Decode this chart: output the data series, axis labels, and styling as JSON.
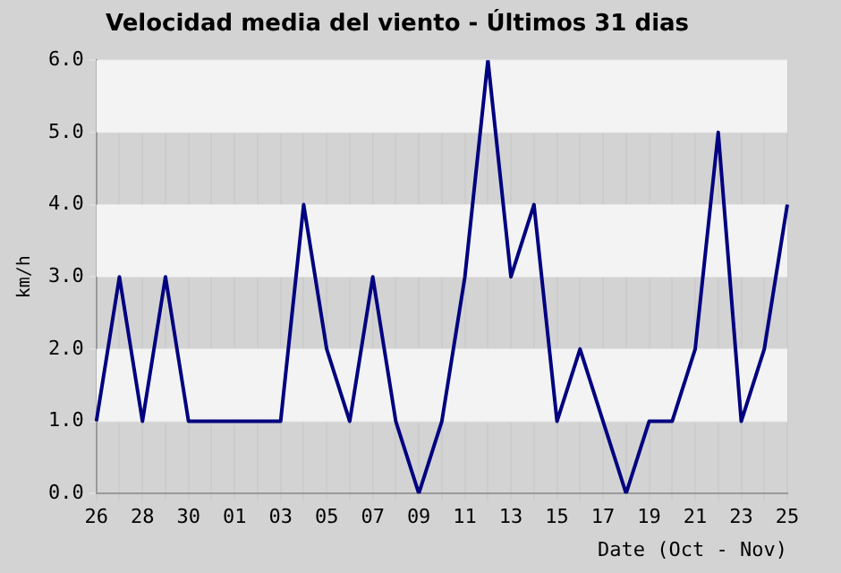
{
  "chart_data": {
    "type": "line",
    "title": "Velocidad media del viento - Últimos 31 dias",
    "xlabel": "Date (Oct - Nov)",
    "ylabel": "km/h",
    "categories": [
      "26",
      null,
      "28",
      null,
      "30",
      null,
      "01",
      null,
      "03",
      null,
      "05",
      null,
      "07",
      null,
      "09",
      null,
      "11",
      null,
      "13",
      null,
      "15",
      null,
      "17",
      null,
      "19",
      null,
      "21",
      null,
      "23",
      null,
      "25"
    ],
    "series": [
      {
        "color": "#000080",
        "values": [
          1,
          3,
          1,
          3,
          1,
          1,
          1,
          1,
          1,
          4,
          2,
          1,
          3,
          1,
          0,
          1,
          3,
          6,
          3,
          4,
          1,
          2,
          1,
          0,
          1,
          1,
          2,
          5,
          1,
          2,
          4
        ]
      }
    ],
    "ylim": [
      0,
      6
    ],
    "yticks": [
      {
        "value": 0,
        "label": "0.0"
      },
      {
        "value": 1,
        "label": "1.0"
      },
      {
        "value": 2,
        "label": "2.0"
      },
      {
        "value": 3,
        "label": "3.0"
      },
      {
        "value": 4,
        "label": "4.0"
      },
      {
        "value": 5,
        "label": "5.0"
      },
      {
        "value": 6,
        "label": "6.0"
      }
    ],
    "grid": true,
    "marker": "none",
    "line_style": "solid",
    "legend": false
  }
}
